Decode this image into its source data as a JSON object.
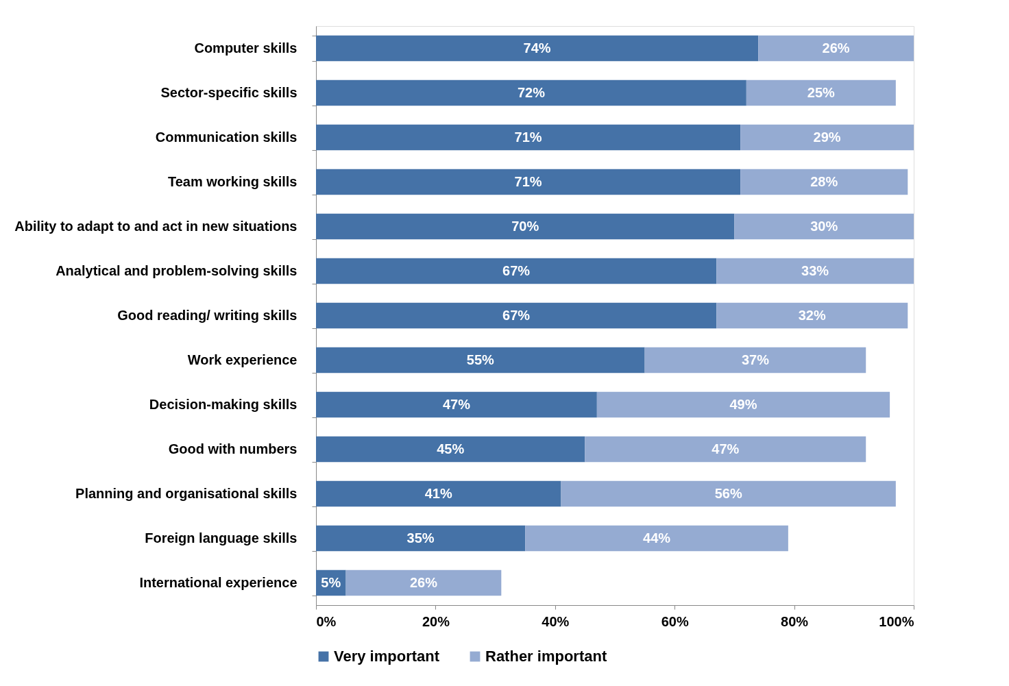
{
  "chart_data": {
    "type": "bar",
    "orientation": "horizontal",
    "stacked": true,
    "categories": [
      "Computer skills",
      "Sector-specific skills",
      "Communication skills",
      "Team working skills",
      "Ability to adapt to and act in new situations",
      "Analytical and problem-solving skills",
      "Good reading/ writing skills",
      "Work experience",
      "Decision-making skills",
      "Good with numbers",
      "Planning and organisational skills",
      "Foreign language skills",
      "International experience"
    ],
    "series": [
      {
        "name": "Very important",
        "color": "#4572a7",
        "values": [
          74,
          72,
          71,
          71,
          70,
          67,
          67,
          55,
          47,
          45,
          41,
          35,
          5
        ],
        "value_labels": [
          "74%",
          "72%",
          "71%",
          "71%",
          "70%",
          "67%",
          "67%",
          "55%",
          "47%",
          "45%",
          "41%",
          "35%",
          "5%"
        ]
      },
      {
        "name": "Rather important",
        "color": "#95abd2",
        "values": [
          26,
          25,
          29,
          28,
          30,
          33,
          32,
          37,
          49,
          47,
          56,
          44,
          26
        ],
        "value_labels": [
          "26%",
          "25%",
          "29%",
          "28%",
          "30%",
          "33%",
          "32%",
          "37%",
          "49%",
          "47%",
          "56%",
          "44%",
          "26%"
        ]
      }
    ],
    "xlim": [
      0,
      100
    ],
    "xticks": [
      {
        "value": 0,
        "label": "0%"
      },
      {
        "value": 20,
        "label": "20%"
      },
      {
        "value": 40,
        "label": "40%"
      },
      {
        "value": 60,
        "label": "60%"
      },
      {
        "value": 80,
        "label": "80%"
      },
      {
        "value": 100,
        "label": "100%"
      }
    ],
    "grid": false,
    "legend": "bottom"
  }
}
